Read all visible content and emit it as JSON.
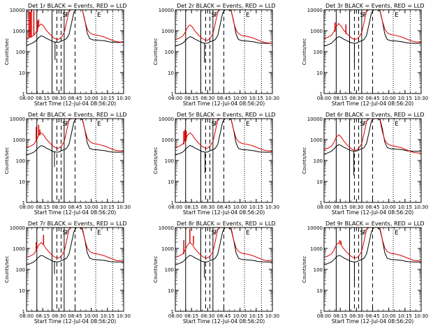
{
  "chart_data": {
    "type": "line",
    "start_time_label": "Start Time (12-Jul-04 08:56:20)",
    "ylabel": "Counts/sec",
    "yscale": "log",
    "ylim": [
      1,
      10000
    ],
    "y_ticks": [
      1,
      10,
      100,
      1000,
      10000
    ],
    "x_tick_labels": [
      "08:00",
      "08:15",
      "08:30",
      "08:45",
      "10:00",
      "10:15",
      "10:30"
    ],
    "x_range_minutes": [
      0,
      160
    ],
    "legend": "BLACK = Events, RED = LLD",
    "series_colors": {
      "events": "#000000",
      "lld": "#dd0000"
    },
    "marker_letters": [
      "S",
      "F",
      "E"
    ],
    "events_curve": [
      [
        0,
        180
      ],
      [
        6,
        210
      ],
      [
        12,
        250
      ],
      [
        16,
        320
      ],
      [
        20,
        430
      ],
      [
        24,
        520
      ],
      [
        28,
        480
      ],
      [
        32,
        400
      ],
      [
        38,
        330
      ],
      [
        44,
        270
      ],
      [
        50,
        250
      ],
      [
        54,
        260
      ],
      [
        58,
        300
      ],
      [
        62,
        330
      ],
      [
        66,
        380
      ],
      [
        70,
        600
      ],
      [
        74,
        2000
      ],
      [
        78,
        7000
      ],
      [
        82,
        14000
      ],
      [
        88,
        14000
      ],
      [
        92,
        9000
      ],
      [
        96,
        3000
      ],
      [
        100,
        700
      ],
      [
        104,
        380
      ],
      [
        110,
        330
      ],
      [
        118,
        320
      ],
      [
        128,
        300
      ],
      [
        138,
        260
      ],
      [
        148,
        250
      ],
      [
        160,
        250
      ]
    ],
    "lld_curve": [
      [
        0,
        420
      ],
      [
        6,
        480
      ],
      [
        12,
        600
      ],
      [
        16,
        900
      ],
      [
        20,
        1600
      ],
      [
        24,
        2100
      ],
      [
        28,
        1700
      ],
      [
        32,
        1100
      ],
      [
        38,
        700
      ],
      [
        44,
        480
      ],
      [
        50,
        380
      ],
      [
        54,
        400
      ],
      [
        58,
        520
      ],
      [
        62,
        800
      ],
      [
        66,
        2500
      ],
      [
        70,
        9000
      ],
      [
        74,
        14000
      ],
      [
        78,
        14000
      ],
      [
        82,
        14000
      ],
      [
        88,
        14000
      ],
      [
        92,
        11000
      ],
      [
        96,
        3000
      ],
      [
        100,
        1200
      ],
      [
        104,
        800
      ],
      [
        110,
        650
      ],
      [
        118,
        600
      ],
      [
        128,
        500
      ],
      [
        138,
        380
      ],
      [
        148,
        300
      ],
      [
        160,
        280
      ]
    ],
    "panels": [
      {
        "title": "Det 1r BLACK = Events, RED = LLD",
        "lld_spikes": [
          [
            4,
            9000
          ],
          [
            6,
            8000
          ],
          [
            8,
            10000
          ],
          [
            12,
            9000
          ],
          [
            18,
            3000
          ],
          [
            20,
            3500
          ]
        ],
        "dips": [
          [
            47,
            40
          ]
        ],
        "events_scale": 1.1,
        "lld_scale": 1.0,
        "solid_lines": [
          17,
          42,
          62
        ],
        "dashed_lines": [
          50,
          57,
          80
        ],
        "dotted_lines": [
          114,
          142
        ]
      },
      {
        "title": "Det 2r BLACK = Events, RED = LLD",
        "lld_spikes": [],
        "dips": [
          [
            48,
            30
          ]
        ],
        "events_scale": 1.0,
        "lld_scale": 0.9,
        "solid_lines": [
          17,
          42,
          62
        ],
        "dashed_lines": [
          50,
          57,
          80
        ],
        "dotted_lines": [
          114,
          142
        ]
      },
      {
        "title": "Det 3r BLACK = Events, RED = LLD",
        "lld_spikes": [
          [
            18,
            2500
          ],
          [
            24,
            2300
          ],
          [
            36,
            2000
          ]
        ],
        "dips": [
          [
            50,
            20
          ]
        ],
        "events_scale": 1.0,
        "lld_scale": 1.0,
        "solid_lines": [
          20,
          42,
          62
        ],
        "dashed_lines": [
          50,
          57,
          80
        ],
        "dotted_lines": [
          114,
          142
        ]
      },
      {
        "title": "Det 4r BLACK = Events, RED = LLD",
        "lld_spikes": [
          [
            16,
            4000
          ],
          [
            20,
            5000
          ],
          [
            22,
            3000
          ]
        ],
        "dips": [
          [
            46,
            50
          ]
        ],
        "events_scale": 1.0,
        "lld_scale": 1.0,
        "solid_lines": [
          17,
          42,
          62
        ],
        "dashed_lines": [
          50,
          57,
          80
        ],
        "dotted_lines": [
          114,
          142
        ]
      },
      {
        "title": "Det 5r BLACK = Events, RED = LLD",
        "lld_spikes": [
          [
            14,
            2500
          ],
          [
            16,
            3000
          ],
          [
            18,
            2600
          ]
        ],
        "dips": [
          [
            49,
            25
          ]
        ],
        "events_scale": 1.0,
        "lld_scale": 1.0,
        "solid_lines": [
          17,
          42,
          62
        ],
        "dashed_lines": [
          50,
          57,
          80
        ],
        "dotted_lines": [
          114,
          142
        ]
      },
      {
        "title": "Det 6r BLACK = Events, RED = LLD",
        "lld_spikes": [],
        "dips": [
          [
            49,
            20
          ]
        ],
        "events_scale": 1.1,
        "lld_scale": 0.8,
        "solid_lines": [
          20,
          42,
          62
        ],
        "dashed_lines": [
          50,
          57,
          80
        ],
        "dotted_lines": [
          114,
          142
        ]
      },
      {
        "title": "Det 7r BLACK = Events, RED = LLD",
        "lld_spikes": [
          [
            16,
            2000
          ],
          [
            28,
            4500
          ]
        ],
        "dips": [
          [
            46,
            60
          ]
        ],
        "events_scale": 0.9,
        "lld_scale": 0.9,
        "solid_lines": [
          17,
          42,
          62
        ],
        "dashed_lines": [
          50,
          57,
          80
        ],
        "dotted_lines": [
          114,
          142
        ]
      },
      {
        "title": "Det 8r BLACK = Events, RED = LLD",
        "lld_spikes": [
          [
            14,
            2500
          ],
          [
            24,
            9000
          ],
          [
            30,
            4000
          ]
        ],
        "dips": [
          [
            48,
            40
          ]
        ],
        "events_scale": 0.9,
        "lld_scale": 0.9,
        "solid_lines": [
          17,
          42,
          62
        ],
        "dashed_lines": [
          50,
          57,
          80
        ],
        "dotted_lines": [
          114,
          142
        ]
      },
      {
        "title": "Det 9r BLACK = Events, RED = LLD",
        "lld_spikes": [
          [
            26,
            2500
          ],
          [
            28,
            2200
          ]
        ],
        "dips": [
          [
            50,
            20
          ]
        ],
        "events_scale": 0.9,
        "lld_scale": 0.9,
        "solid_lines": [
          20,
          42,
          62
        ],
        "dashed_lines": [
          50,
          57,
          80
        ],
        "dotted_lines": [
          114,
          142
        ]
      }
    ]
  }
}
